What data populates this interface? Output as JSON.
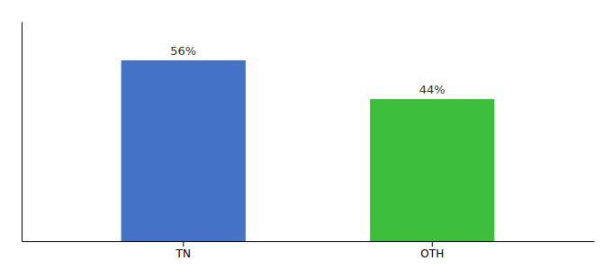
{
  "chart_data": {
    "type": "bar",
    "categories": [
      "TN",
      "OTH"
    ],
    "values": [
      56,
      44
    ],
    "value_labels": [
      "56%",
      "44%"
    ],
    "colors": [
      "#4472c4",
      "#3dbe3d"
    ],
    "ylim": [
      0,
      68
    ],
    "data_labels": true,
    "tick_labels": "x",
    "grid": false
  }
}
